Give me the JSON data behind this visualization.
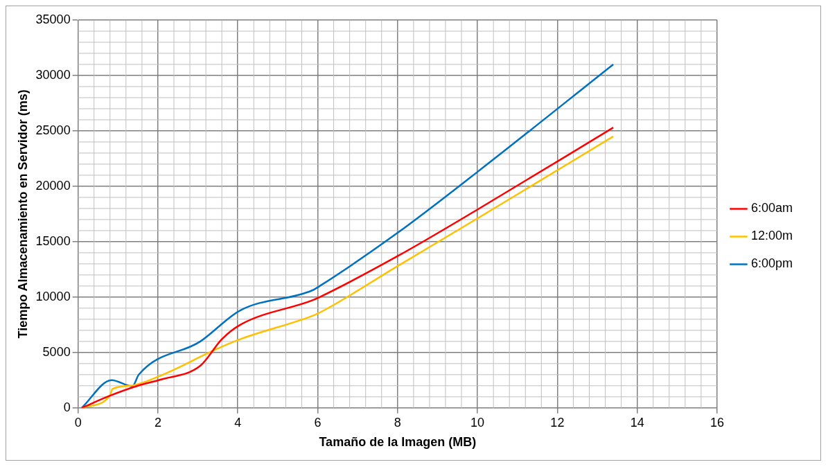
{
  "chart_data": {
    "type": "line",
    "xlabel": "Tamaño de la Imagen (MB)",
    "ylabel": "Tiempo Almacenamiento en Servidor (ms)",
    "xlim": [
      0,
      16
    ],
    "xticks": [
      0,
      2,
      4,
      6,
      8,
      10,
      12,
      14,
      16
    ],
    "ylim": [
      0,
      35000
    ],
    "yticks": [
      0,
      5000,
      10000,
      15000,
      20000,
      25000,
      30000,
      35000
    ],
    "grid": true,
    "legend": "right",
    "marker": "none",
    "line_style": "solid",
    "series": [
      {
        "name": "6:00am",
        "color": "#ff0000",
        "x": [
          0.09,
          0.8,
          1.5,
          2.06,
          3.06,
          3.6,
          4.06,
          5.86,
          6.05,
          8,
          10,
          13.4
        ],
        "values": [
          0,
          1100,
          2000,
          2550,
          3800,
          6200,
          7500,
          9700,
          10000,
          13700,
          17900,
          25300
        ]
      },
      {
        "name": "12:00m",
        "color": "#ffc000",
        "x": [
          0.09,
          0.8,
          0.86,
          1.3,
          2.06,
          3.46,
          4.06,
          5.86,
          6.05,
          8,
          10,
          13.4
        ],
        "values": [
          0,
          1100,
          1700,
          2000,
          2900,
          5300,
          6200,
          8300,
          8600,
          12800,
          17100,
          24500
        ]
      },
      {
        "name": "6:00pm",
        "color": "#0070c0",
        "x": [
          0.09,
          0.84,
          1.36,
          1.52,
          3.06,
          4.06,
          5.86,
          6.05,
          8,
          10,
          13.4
        ],
        "values": [
          0,
          2500,
          1950,
          3000,
          6000,
          8800,
          10600,
          11000,
          15800,
          21300,
          31000
        ]
      }
    ]
  }
}
